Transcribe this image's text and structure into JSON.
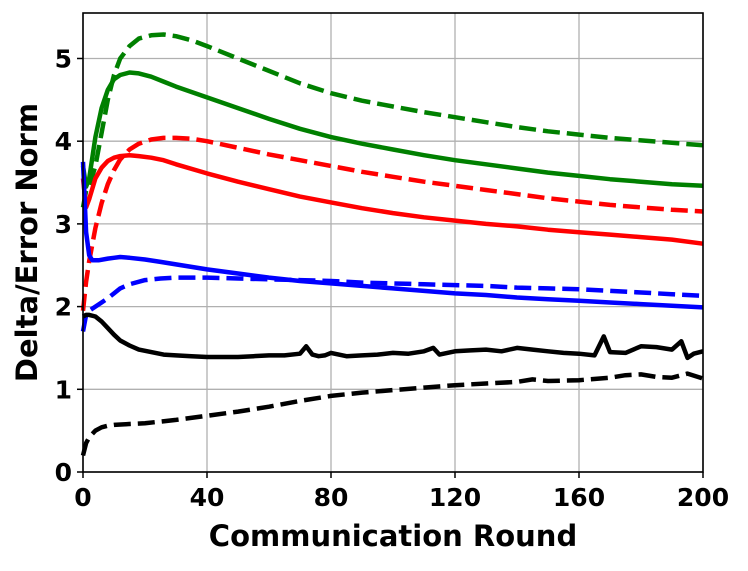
{
  "chart_data": {
    "type": "line",
    "title": "",
    "xlabel": "Communication Round",
    "ylabel": "Delta/Error Norm",
    "xlim": [
      0,
      200
    ],
    "ylim": [
      0,
      5.55
    ],
    "xticks": [
      "0",
      "40",
      "80",
      "120",
      "160",
      "200"
    ],
    "xtick_values": [
      0,
      40,
      80,
      120,
      160,
      200
    ],
    "yticks": [
      "0",
      "1",
      "2",
      "3",
      "4",
      "5"
    ],
    "ytick_values": [
      0,
      1,
      2,
      3,
      4,
      5
    ],
    "grid": true,
    "legend": "none",
    "series": [
      {
        "color": "#008000",
        "style": "solid",
        "x": [
          0,
          1,
          2,
          4,
          6,
          8,
          10,
          12,
          15,
          18,
          22,
          26,
          30,
          40,
          50,
          60,
          70,
          80,
          90,
          100,
          110,
          120,
          130,
          140,
          150,
          160,
          170,
          180,
          190,
          200
        ],
        "y": [
          3.7,
          3.45,
          3.55,
          4.05,
          4.4,
          4.62,
          4.75,
          4.8,
          4.83,
          4.82,
          4.78,
          4.72,
          4.66,
          4.53,
          4.4,
          4.27,
          4.15,
          4.05,
          3.97,
          3.9,
          3.83,
          3.77,
          3.72,
          3.67,
          3.62,
          3.58,
          3.54,
          3.51,
          3.48,
          3.46
        ]
      },
      {
        "color": "#008000",
        "style": "dashed",
        "x": [
          0,
          1,
          2,
          4,
          6,
          8,
          10,
          12,
          15,
          18,
          22,
          26,
          30,
          35,
          40,
          50,
          60,
          70,
          80,
          90,
          100,
          110,
          120,
          130,
          140,
          150,
          160,
          170,
          180,
          190,
          200
        ],
        "y": [
          3.2,
          3.4,
          3.45,
          3.7,
          4.1,
          4.5,
          4.8,
          5.0,
          5.15,
          5.24,
          5.28,
          5.29,
          5.27,
          5.22,
          5.15,
          5.0,
          4.85,
          4.7,
          4.58,
          4.49,
          4.42,
          4.35,
          4.29,
          4.23,
          4.17,
          4.12,
          4.08,
          4.04,
          4.01,
          3.98,
          3.95
        ]
      },
      {
        "color": "#ff0000",
        "style": "solid",
        "x": [
          0,
          1,
          2,
          4,
          6,
          8,
          10,
          12,
          15,
          18,
          22,
          26,
          30,
          40,
          50,
          60,
          70,
          80,
          90,
          100,
          110,
          120,
          130,
          140,
          150,
          160,
          170,
          180,
          190,
          200
        ],
        "y": [
          3.55,
          3.2,
          3.3,
          3.55,
          3.68,
          3.76,
          3.8,
          3.82,
          3.83,
          3.82,
          3.8,
          3.77,
          3.72,
          3.61,
          3.51,
          3.42,
          3.33,
          3.26,
          3.19,
          3.13,
          3.08,
          3.04,
          3.0,
          2.97,
          2.93,
          2.9,
          2.87,
          2.84,
          2.81,
          2.76
        ]
      },
      {
        "color": "#ff0000",
        "style": "dashed",
        "x": [
          0,
          1,
          2,
          4,
          6,
          8,
          10,
          12,
          15,
          18,
          22,
          26,
          30,
          35,
          40,
          50,
          60,
          70,
          80,
          90,
          100,
          110,
          120,
          130,
          140,
          150,
          160,
          170,
          180,
          190,
          200
        ],
        "y": [
          1.95,
          2.3,
          2.55,
          2.95,
          3.25,
          3.48,
          3.65,
          3.78,
          3.9,
          3.97,
          4.02,
          4.04,
          4.04,
          4.03,
          4.0,
          3.92,
          3.84,
          3.77,
          3.7,
          3.63,
          3.57,
          3.51,
          3.46,
          3.41,
          3.36,
          3.31,
          3.27,
          3.23,
          3.2,
          3.17,
          3.15
        ]
      },
      {
        "color": "#0000ff",
        "style": "solid",
        "x": [
          0,
          1,
          2,
          3,
          5,
          8,
          10,
          12,
          15,
          20,
          25,
          30,
          40,
          50,
          60,
          70,
          80,
          90,
          100,
          110,
          120,
          130,
          140,
          150,
          160,
          170,
          180,
          190,
          200
        ],
        "y": [
          3.75,
          2.9,
          2.62,
          2.56,
          2.56,
          2.58,
          2.59,
          2.6,
          2.59,
          2.57,
          2.54,
          2.51,
          2.45,
          2.4,
          2.35,
          2.31,
          2.28,
          2.25,
          2.22,
          2.19,
          2.16,
          2.14,
          2.11,
          2.09,
          2.07,
          2.05,
          2.03,
          2.01,
          1.99
        ]
      },
      {
        "color": "#0000ff",
        "style": "dashed",
        "x": [
          0,
          1,
          2,
          4,
          6,
          8,
          10,
          12,
          15,
          20,
          25,
          30,
          40,
          50,
          60,
          70,
          80,
          90,
          100,
          110,
          120,
          130,
          140,
          150,
          160,
          170,
          180,
          190,
          200
        ],
        "y": [
          1.7,
          1.9,
          1.95,
          2.0,
          2.05,
          2.1,
          2.16,
          2.22,
          2.27,
          2.32,
          2.34,
          2.35,
          2.35,
          2.34,
          2.33,
          2.32,
          2.31,
          2.29,
          2.28,
          2.27,
          2.26,
          2.25,
          2.23,
          2.22,
          2.21,
          2.19,
          2.17,
          2.15,
          2.13
        ]
      },
      {
        "color": "#000000",
        "style": "solid",
        "x": [
          0,
          1,
          2,
          4,
          6,
          8,
          10,
          12,
          15,
          18,
          22,
          26,
          30,
          35,
          40,
          45,
          50,
          55,
          60,
          65,
          70,
          72,
          74,
          76,
          78,
          80,
          85,
          90,
          95,
          100,
          105,
          110,
          113,
          115,
          120,
          125,
          130,
          135,
          140,
          145,
          150,
          155,
          160,
          165,
          168,
          170,
          175,
          180,
          185,
          190,
          193,
          195,
          197,
          200
        ],
        "y": [
          1.88,
          1.9,
          1.9,
          1.88,
          1.82,
          1.74,
          1.66,
          1.59,
          1.53,
          1.48,
          1.45,
          1.42,
          1.41,
          1.4,
          1.39,
          1.39,
          1.39,
          1.4,
          1.41,
          1.41,
          1.43,
          1.52,
          1.42,
          1.4,
          1.41,
          1.44,
          1.4,
          1.41,
          1.42,
          1.44,
          1.43,
          1.46,
          1.5,
          1.42,
          1.46,
          1.47,
          1.48,
          1.46,
          1.5,
          1.48,
          1.46,
          1.44,
          1.43,
          1.41,
          1.64,
          1.45,
          1.44,
          1.52,
          1.51,
          1.48,
          1.58,
          1.38,
          1.43,
          1.46
        ]
      },
      {
        "color": "#000000",
        "style": "dashed",
        "x": [
          0,
          1,
          2,
          4,
          6,
          8,
          10,
          15,
          20,
          25,
          30,
          40,
          50,
          60,
          70,
          80,
          90,
          100,
          110,
          120,
          130,
          140,
          145,
          150,
          160,
          170,
          175,
          180,
          185,
          190,
          195,
          200
        ],
        "y": [
          0.2,
          0.35,
          0.42,
          0.5,
          0.54,
          0.56,
          0.57,
          0.58,
          0.59,
          0.61,
          0.63,
          0.68,
          0.73,
          0.79,
          0.86,
          0.92,
          0.96,
          0.99,
          1.02,
          1.05,
          1.07,
          1.09,
          1.12,
          1.1,
          1.11,
          1.14,
          1.17,
          1.18,
          1.15,
          1.14,
          1.19,
          1.13
        ]
      }
    ]
  }
}
